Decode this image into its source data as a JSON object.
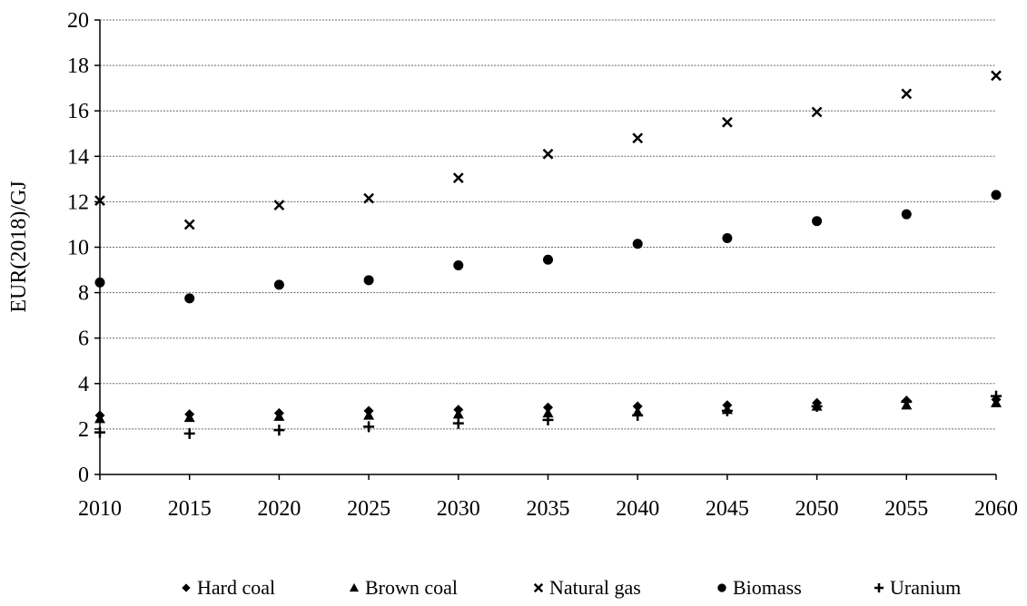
{
  "chart_data": {
    "type": "scatter",
    "title": "",
    "xlabel": "",
    "ylabel": "EUR(2018)/GJ",
    "x": [
      2010,
      2015,
      2020,
      2025,
      2030,
      2035,
      2040,
      2045,
      2050,
      2055,
      2060
    ],
    "x_ticks": [
      "2010",
      "2015",
      "2020",
      "2025",
      "2030",
      "2035",
      "2040",
      "2045",
      "2050",
      "2055",
      "2060"
    ],
    "ylim": [
      0,
      20
    ],
    "y_ticks": [
      "0",
      "2",
      "4",
      "6",
      "8",
      "10",
      "12",
      "14",
      "16",
      "18",
      "20"
    ],
    "grid": "horizontal",
    "legend_position": "bottom",
    "color": "#000000",
    "series": [
      {
        "name": "Hard coal",
        "marker": "diamond",
        "values": [
          2.6,
          2.65,
          2.7,
          2.8,
          2.85,
          2.95,
          3.0,
          3.05,
          3.15,
          3.25,
          3.3
        ]
      },
      {
        "name": "Brown coal",
        "marker": "triangle",
        "values": [
          2.45,
          2.5,
          2.55,
          2.6,
          2.65,
          2.7,
          2.75,
          2.85,
          3.0,
          3.05,
          3.15
        ]
      },
      {
        "name": "Natural gas",
        "marker": "x",
        "values": [
          12.05,
          11.0,
          11.85,
          12.15,
          13.05,
          14.1,
          14.8,
          15.5,
          15.95,
          16.75,
          17.55
        ]
      },
      {
        "name": "Biomass",
        "marker": "circle",
        "values": [
          8.45,
          7.75,
          8.35,
          8.55,
          9.2,
          9.45,
          10.15,
          10.4,
          11.15,
          11.45,
          12.3
        ]
      },
      {
        "name": "Uranium",
        "marker": "plus",
        "values": [
          1.85,
          1.8,
          1.95,
          2.1,
          2.25,
          2.4,
          2.6,
          2.8,
          3.0,
          3.2,
          3.45
        ]
      }
    ]
  }
}
